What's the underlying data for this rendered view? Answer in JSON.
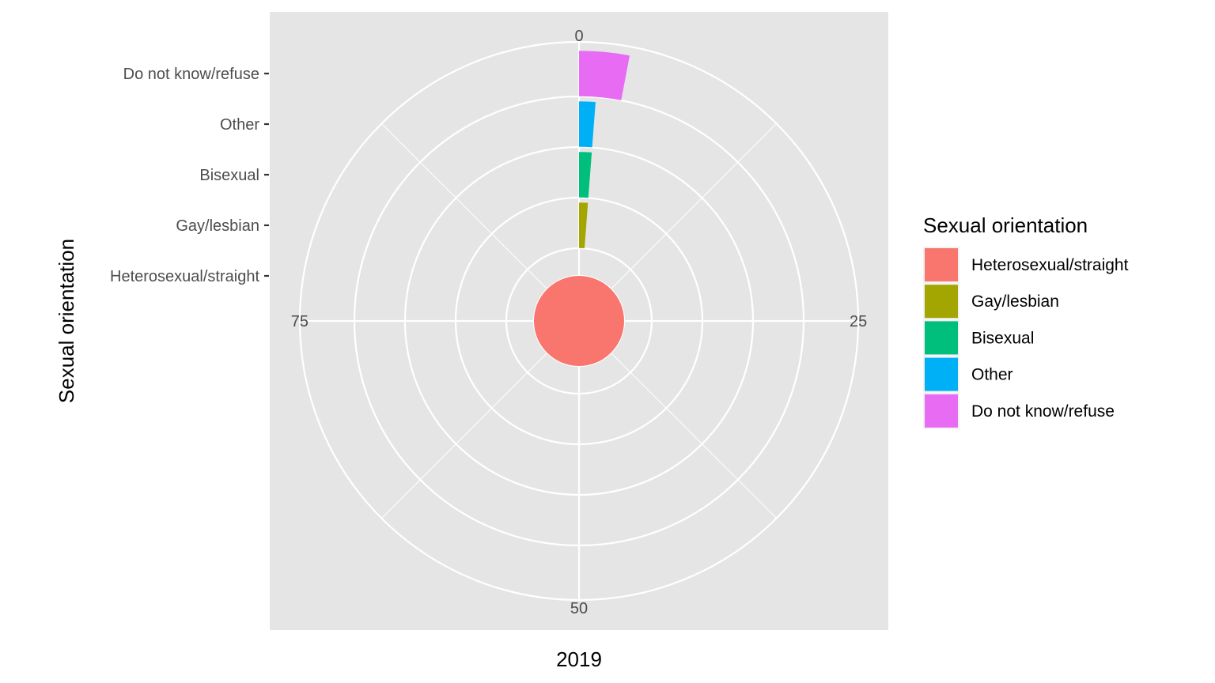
{
  "chart_data": {
    "type": "bar",
    "coord": "polar",
    "theta_axis": {
      "ticks": [
        0,
        25,
        50,
        75
      ],
      "tick_labels": [
        "0",
        "25",
        "50",
        "75"
      ],
      "range": [
        0,
        100
      ]
    },
    "y_axis": {
      "title": "Sexual orientation",
      "categories": [
        "Heterosexual/straight",
        "Gay/lesbian",
        "Bisexual",
        "Other",
        "Do not know/refuse"
      ]
    },
    "x_axis": {
      "title": "2019"
    },
    "values": [
      100,
      1.2,
      1.2,
      1.2,
      3.0
    ],
    "legend": {
      "title": "Sexual orientation",
      "position": "right",
      "entries": [
        {
          "label": "Heterosexual/straight",
          "color": "#F8766D"
        },
        {
          "label": "Gay/lesbian",
          "color": "#A3A500"
        },
        {
          "label": "Bisexual",
          "color": "#00BF7D"
        },
        {
          "label": "Other",
          "color": "#00B0F6"
        },
        {
          "label": "Do not know/refuse",
          "color": "#E76BF3"
        }
      ]
    },
    "grid": true,
    "panel_background": "#E5E5E5",
    "grid_color": "#FFFFFF"
  }
}
